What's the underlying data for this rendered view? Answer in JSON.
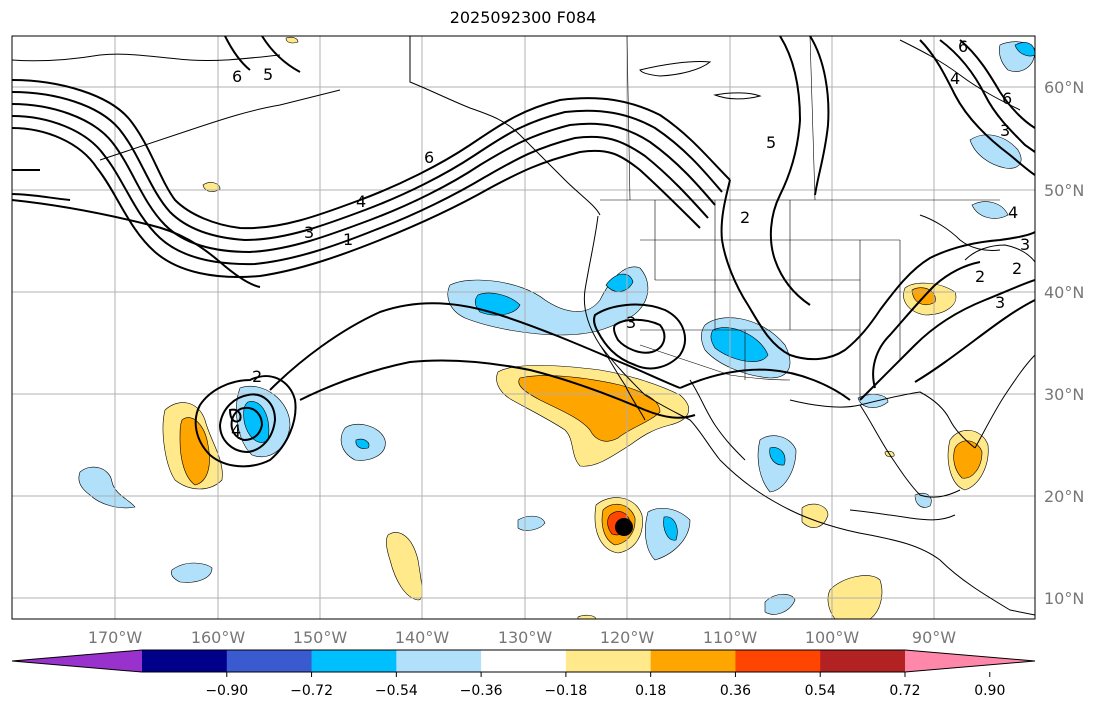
{
  "title": "2025092300 F084",
  "lat_labels": [
    "60°N",
    "50°N",
    "40°N",
    "30°N",
    "20°N",
    "10°N"
  ],
  "lon_labels": [
    "170°W",
    "160°W",
    "150°W",
    "140°W",
    "130°W",
    "120°W",
    "110°W",
    "100°W",
    "90°W"
  ],
  "colorbar": {
    "ticks": [
      "−0.90",
      "−0.72",
      "−0.54",
      "−0.36",
      "−0.18",
      "0.18",
      "0.36",
      "0.54",
      "0.72",
      "0.90"
    ],
    "colors": [
      "#9932cc",
      "#00008b",
      "#3a5bd0",
      "#00bfff",
      "#b0e0fa",
      "#ffffff",
      "#ffe98a",
      "#ffa500",
      "#ff4500",
      "#b22222",
      "#ff88aa"
    ]
  },
  "contour_labels": [
    "6",
    "5",
    "6",
    "4",
    "3",
    "1",
    "6",
    "5",
    "2",
    "2",
    "3",
    "4",
    "6",
    "4",
    "3",
    "2",
    "3",
    "3",
    "2",
    "4"
  ],
  "marker": "storm-center-dot"
}
